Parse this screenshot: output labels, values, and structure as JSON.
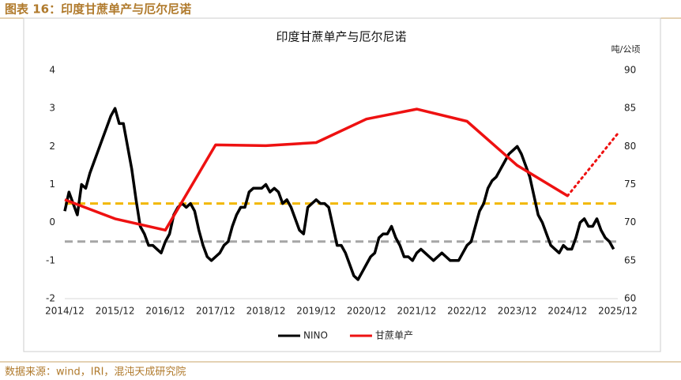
{
  "header": {
    "title": "图表 16：印度甘蔗单产与厄尔尼诺"
  },
  "footer": {
    "source": "数据来源：wind，IRI，混沌天成研究院"
  },
  "chart_data": {
    "type": "line",
    "title": "印度甘蔗单产与厄尔尼诺",
    "y2_label": "吨/公顷",
    "xlim": [
      "2014/12",
      "2025/12"
    ],
    "xticks": [
      "2014/12",
      "2015/12",
      "2016/12",
      "2017/12",
      "2018/12",
      "2019/12",
      "2020/12",
      "2021/12",
      "2022/12",
      "2023/12",
      "2024/12",
      "2025/12"
    ],
    "ylim": [
      -2,
      4
    ],
    "yticks": [
      -2,
      -1,
      0,
      1,
      2,
      3,
      4
    ],
    "y2lim": [
      60,
      90
    ],
    "y2ticks": [
      60,
      65,
      70,
      75,
      80,
      85,
      90
    ],
    "reference_lines": [
      {
        "value": 0.5,
        "color": "#f2b800"
      },
      {
        "value": -0.5,
        "color": "#a6a6a6"
      }
    ],
    "series": [
      {
        "name": "NINO",
        "color": "#000000",
        "width": 3.5,
        "x": [
          "2014/12",
          "2015/01",
          "2015/02",
          "2015/03",
          "2015/04",
          "2015/05",
          "2015/06",
          "2015/07",
          "2015/08",
          "2015/09",
          "2015/10",
          "2015/11",
          "2015/12",
          "2016/01",
          "2016/02",
          "2016/03",
          "2016/04",
          "2016/05",
          "2016/06",
          "2016/07",
          "2016/08",
          "2016/09",
          "2016/10",
          "2016/11",
          "2016/12",
          "2017/01",
          "2017/02",
          "2017/03",
          "2017/04",
          "2017/05",
          "2017/06",
          "2017/07",
          "2017/08",
          "2017/09",
          "2017/10",
          "2017/11",
          "2017/12",
          "2018/01",
          "2018/02",
          "2018/03",
          "2018/04",
          "2018/05",
          "2018/06",
          "2018/07",
          "2018/08",
          "2018/09",
          "2018/10",
          "2018/11",
          "2018/12",
          "2019/01",
          "2019/02",
          "2019/03",
          "2019/04",
          "2019/05",
          "2019/06",
          "2019/07",
          "2019/08",
          "2019/09",
          "2019/10",
          "2019/11",
          "2019/12",
          "2020/01",
          "2020/02",
          "2020/03",
          "2020/04",
          "2020/05",
          "2020/06",
          "2020/07",
          "2020/08",
          "2020/09",
          "2020/10",
          "2020/11",
          "2020/12",
          "2021/01",
          "2021/02",
          "2021/03",
          "2021/04",
          "2021/05",
          "2021/06",
          "2021/07",
          "2021/08",
          "2021/09",
          "2021/10",
          "2021/11",
          "2021/12",
          "2022/01",
          "2022/02",
          "2022/03",
          "2022/04",
          "2022/05",
          "2022/06",
          "2022/07",
          "2022/08",
          "2022/09",
          "2022/10",
          "2022/11",
          "2022/12",
          "2023/01",
          "2023/02",
          "2023/03",
          "2023/04",
          "2023/05",
          "2023/06",
          "2023/07",
          "2023/08",
          "2023/09",
          "2023/10",
          "2023/11",
          "2023/12",
          "2024/01",
          "2024/02",
          "2024/03",
          "2024/04",
          "2024/05",
          "2024/06",
          "2024/07",
          "2024/08",
          "2024/09",
          "2024/10",
          "2024/11",
          "2024/12",
          "2025/01",
          "2025/02",
          "2025/03",
          "2025/04",
          "2025/05",
          "2025/06",
          "2025/07",
          "2025/08",
          "2025/09",
          "2025/10",
          "2025/11"
        ],
        "values": [
          0.3,
          0.8,
          0.5,
          0.2,
          1.0,
          0.9,
          1.3,
          1.6,
          1.9,
          2.2,
          2.5,
          2.8,
          3.0,
          2.6,
          2.6,
          2.0,
          1.4,
          0.6,
          -0.1,
          -0.3,
          -0.6,
          -0.6,
          -0.7,
          -0.8,
          -0.5,
          -0.3,
          0.2,
          0.4,
          0.5,
          0.4,
          0.5,
          0.3,
          -0.2,
          -0.6,
          -0.9,
          -1.0,
          -0.9,
          -0.8,
          -0.6,
          -0.5,
          -0.1,
          0.2,
          0.4,
          0.4,
          0.8,
          0.9,
          0.9,
          0.9,
          1.0,
          0.8,
          0.9,
          0.8,
          0.5,
          0.6,
          0.4,
          0.1,
          -0.2,
          -0.3,
          0.4,
          0.5,
          0.6,
          0.5,
          0.5,
          0.4,
          -0.1,
          -0.6,
          -0.6,
          -0.8,
          -1.1,
          -1.4,
          -1.5,
          -1.3,
          -1.1,
          -0.9,
          -0.8,
          -0.4,
          -0.3,
          -0.3,
          -0.1,
          -0.4,
          -0.6,
          -0.9,
          -0.9,
          -1.0,
          -0.8,
          -0.7,
          -0.8,
          -0.9,
          -1.0,
          -0.9,
          -0.8,
          -0.9,
          -1.0,
          -1.0,
          -1.0,
          -0.8,
          -0.6,
          -0.5,
          -0.1,
          0.3,
          0.5,
          0.9,
          1.1,
          1.2,
          1.4,
          1.6,
          1.8,
          1.9,
          2.0,
          1.8,
          1.5,
          1.2,
          0.7,
          0.2,
          0.0,
          -0.3,
          -0.6,
          -0.7,
          -0.8,
          -0.6,
          -0.7,
          -0.7,
          -0.4,
          0.0,
          0.1,
          -0.1,
          -0.1,
          0.1,
          -0.2,
          -0.4,
          -0.5,
          -0.7
        ]
      },
      {
        "name": "甘蔗单产",
        "color": "#ee1111",
        "width": 3.5,
        "axis": "y2",
        "x": [
          "2014/12",
          "2015/12",
          "2016/12",
          "2017/12",
          "2018/12",
          "2019/12",
          "2020/12",
          "2021/12",
          "2022/12",
          "2023/12",
          "2024/12"
        ],
        "values": [
          73.0,
          70.5,
          69.0,
          80.2,
          80.1,
          80.5,
          83.6,
          84.9,
          83.3,
          77.5,
          73.5
        ]
      },
      {
        "color": "#ee1111",
        "width": 3,
        "axis": "y2",
        "style": "dotted",
        "x": [
          "2024/12",
          "2025/12"
        ],
        "values": [
          73.5,
          81.7
        ]
      }
    ]
  }
}
